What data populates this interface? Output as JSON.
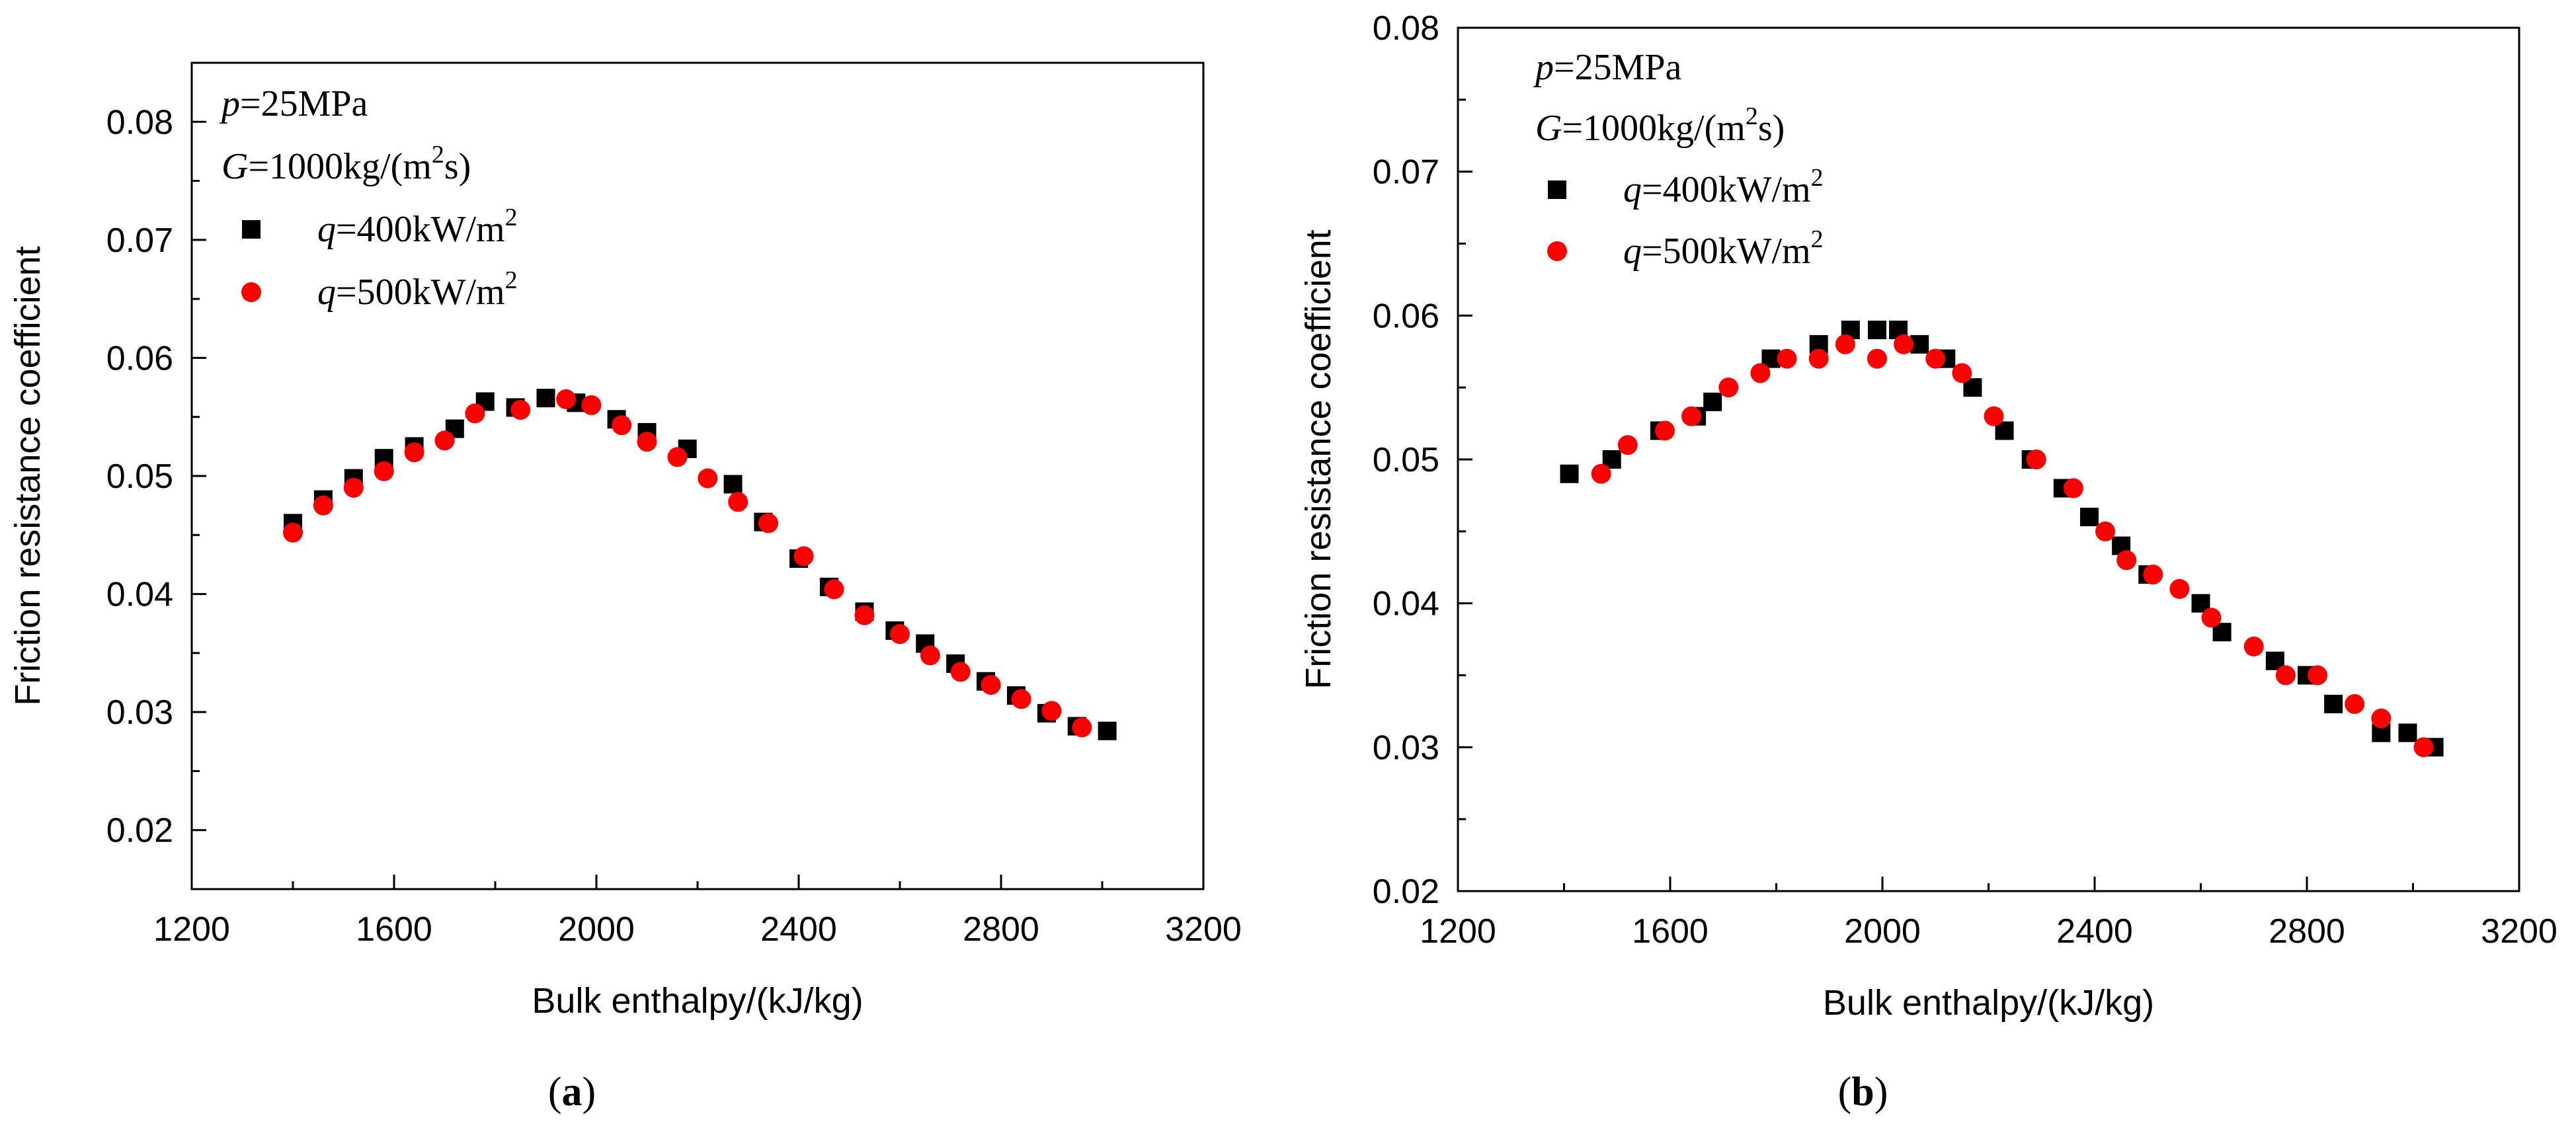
{
  "chart_data": [
    {
      "type": "scatter",
      "panel_label": "a",
      "xlabel": "Bulk enthalpy/(kJ/kg)",
      "ylabel": "Friction resistance coefficient",
      "xlim": [
        1200,
        3200
      ],
      "ylim": [
        0.015,
        0.085
      ],
      "xticks": [
        1200,
        1600,
        2000,
        2400,
        2800,
        3200
      ],
      "yticks": [
        0.02,
        0.03,
        0.04,
        0.05,
        0.06,
        0.07,
        0.08
      ],
      "xtick_labels": [
        "1200",
        "1600",
        "2000",
        "2400",
        "2800",
        "3200"
      ],
      "ytick_labels": [
        "0.02",
        "0.03",
        "0.04",
        "0.05",
        "0.06",
        "0.07",
        "0.08"
      ],
      "annotations": {
        "pressure": {
          "var": "p",
          "text": "=25MPa"
        },
        "mass_flux": {
          "var": "G",
          "text": "=1000kg/(m",
          "sup": "2",
          "tail": "s)"
        }
      },
      "legend_position": "top-left",
      "series": [
        {
          "name": "q=400kW/m2",
          "legend": {
            "var": "q",
            "text": "=400kW/m",
            "sup": "2"
          },
          "marker": "square",
          "color": "#000000",
          "x": [
            1400,
            1460,
            1520,
            1580,
            1640,
            1720,
            1780,
            1840,
            1900,
            1960,
            2040,
            2100,
            2180,
            2270,
            2330,
            2400,
            2460,
            2530,
            2590,
            2650,
            2710,
            2770,
            2830,
            2890,
            2950,
            3010
          ],
          "y": [
            0.046,
            0.048,
            0.0498,
            0.0515,
            0.0525,
            0.054,
            0.0563,
            0.0558,
            0.0566,
            0.0562,
            0.0548,
            0.0537,
            0.0523,
            0.0493,
            0.0461,
            0.043,
            0.0406,
            0.0385,
            0.0369,
            0.0358,
            0.0341,
            0.0326,
            0.0314,
            0.0299,
            0.0288,
            0.0284
          ]
        },
        {
          "name": "q=500kW/m2",
          "legend": {
            "var": "q",
            "text": "=500kW/m",
            "sup": "2"
          },
          "marker": "circle",
          "color": "#ff0000",
          "x": [
            1400,
            1460,
            1520,
            1580,
            1640,
            1700,
            1760,
            1850,
            1940,
            1990,
            2050,
            2100,
            2160,
            2220,
            2280,
            2340,
            2410,
            2470,
            2530,
            2600,
            2660,
            2720,
            2780,
            2840,
            2900,
            2960
          ],
          "y": [
            0.0452,
            0.0475,
            0.049,
            0.0504,
            0.052,
            0.053,
            0.0553,
            0.0556,
            0.0565,
            0.056,
            0.0543,
            0.0529,
            0.0516,
            0.0498,
            0.0478,
            0.046,
            0.0432,
            0.0404,
            0.0382,
            0.0366,
            0.0348,
            0.0334,
            0.0323,
            0.0311,
            0.0301,
            0.0287
          ]
        }
      ]
    },
    {
      "type": "scatter",
      "panel_label": "b",
      "xlabel": "Bulk enthalpy/(kJ/kg)",
      "ylabel": "Friction resistance coefficient",
      "xlim": [
        1200,
        3200
      ],
      "ylim": [
        0.02,
        0.08
      ],
      "xticks": [
        1200,
        1600,
        2000,
        2400,
        2800,
        3200
      ],
      "yticks": [
        0.02,
        0.03,
        0.04,
        0.05,
        0.06,
        0.07,
        0.08
      ],
      "xtick_labels": [
        "1200",
        "1600",
        "2000",
        "2400",
        "2800",
        "3200"
      ],
      "ytick_labels": [
        "0.02",
        "0.03",
        "0.04",
        "0.05",
        "0.06",
        "0.07",
        "0.08"
      ],
      "annotations": {
        "pressure": {
          "var": "p",
          "text": "=25MPa"
        },
        "mass_flux": {
          "var": "G",
          "text": "=1000kg/(m",
          "sup": "2",
          "tail": "s)"
        }
      },
      "legend_position": "top-left",
      "series": [
        {
          "name": "q=400kW/m2",
          "legend": {
            "var": "q",
            "text": "=400kW/m",
            "sup": "2"
          },
          "marker": "square",
          "color": "#000000",
          "x": [
            1410,
            1490,
            1580,
            1650,
            1680,
            1790,
            1880,
            1940,
            1990,
            2030,
            2070,
            2120,
            2170,
            2230,
            2280,
            2340,
            2390,
            2450,
            2500,
            2600,
            2640,
            2740,
            2800,
            2850,
            2940,
            2990,
            3040
          ],
          "y": [
            0.049,
            0.05,
            0.052,
            0.053,
            0.054,
            0.057,
            0.058,
            0.059,
            0.059,
            0.059,
            0.058,
            0.057,
            0.055,
            0.052,
            0.05,
            0.048,
            0.046,
            0.044,
            0.042,
            0.04,
            0.038,
            0.036,
            0.035,
            0.033,
            0.031,
            0.031,
            0.03
          ]
        },
        {
          "name": "q=500kW/m2",
          "legend": {
            "var": "q",
            "text": "=500kW/m",
            "sup": "2"
          },
          "marker": "circle",
          "color": "#ff0000",
          "x": [
            1470,
            1520,
            1590,
            1640,
            1710,
            1770,
            1820,
            1880,
            1930,
            1990,
            2040,
            2100,
            2150,
            2210,
            2290,
            2360,
            2420,
            2460,
            2510,
            2560,
            2620,
            2700,
            2760,
            2820,
            2890,
            2940,
            3020
          ],
          "y": [
            0.049,
            0.051,
            0.052,
            0.053,
            0.055,
            0.056,
            0.057,
            0.057,
            0.058,
            0.057,
            0.058,
            0.057,
            0.056,
            0.053,
            0.05,
            0.048,
            0.045,
            0.043,
            0.042,
            0.041,
            0.039,
            0.037,
            0.035,
            0.035,
            0.033,
            0.032,
            0.03
          ]
        }
      ]
    }
  ]
}
